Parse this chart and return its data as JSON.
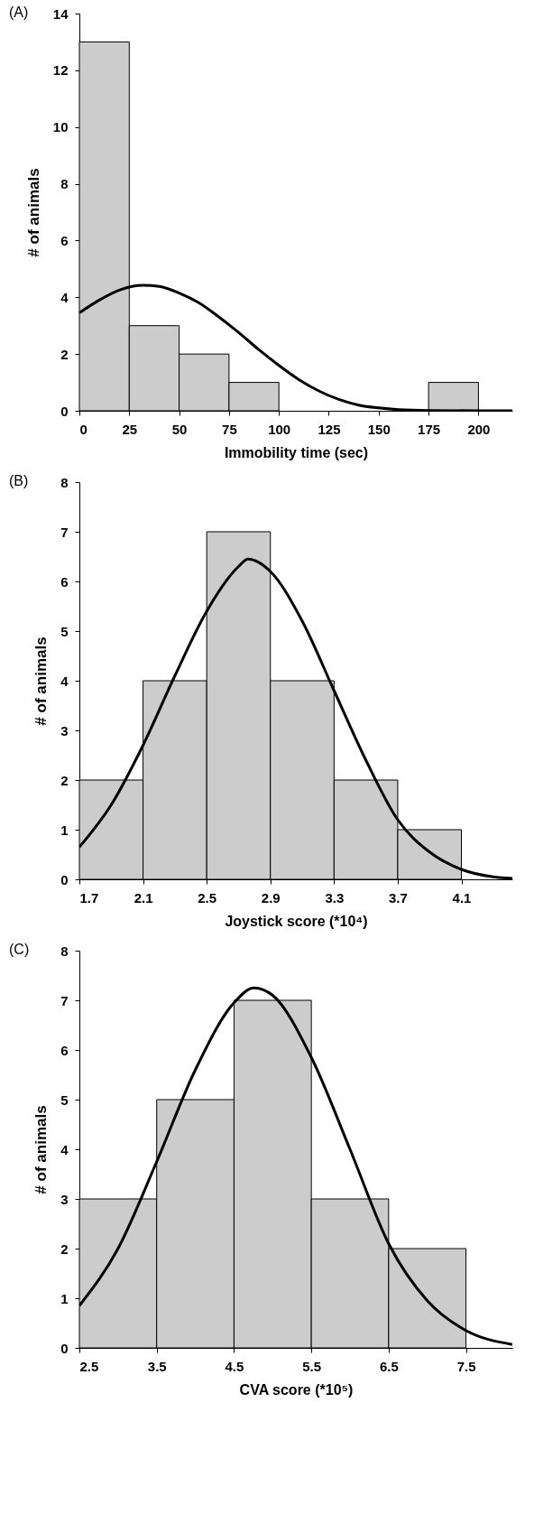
{
  "chart_data": [
    {
      "type": "histogram",
      "title": "(A)",
      "xlabel": "Immobility time (sec)",
      "ylabel": "# of animals",
      "bins": [
        0,
        25,
        50,
        75,
        100,
        125,
        150,
        175,
        200
      ],
      "values": [
        13,
        3,
        2,
        1,
        0,
        0,
        0,
        1
      ],
      "color": "#cccccc",
      "xlim": [
        0,
        217
      ],
      "ylim": [
        0,
        14
      ],
      "xticks": [
        0,
        25,
        50,
        75,
        100,
        125,
        150,
        175,
        200
      ],
      "yticks": [
        0,
        2,
        4,
        6,
        8,
        10,
        12,
        14
      ],
      "series": [
        {
          "type": "line",
          "color": "#000000",
          "x": [
            0,
            10,
            20,
            32,
            40,
            50,
            60,
            70,
            80,
            90,
            100,
            110,
            120,
            130,
            140,
            150,
            160,
            175,
            200,
            217
          ],
          "values": [
            3.45,
            3.9,
            4.25,
            4.42,
            4.38,
            4.15,
            3.8,
            3.3,
            2.75,
            2.15,
            1.6,
            1.1,
            0.7,
            0.4,
            0.2,
            0.1,
            0.04,
            0.01,
            0,
            0
          ]
        }
      ]
    },
    {
      "type": "histogram",
      "title": "(B)",
      "xlabel": "Joystick score (*10⁴)",
      "ylabel": "# of animals",
      "bins": [
        1.7,
        2.1,
        2.5,
        2.9,
        3.3,
        3.7,
        4.1
      ],
      "values": [
        2,
        4,
        7,
        4,
        2,
        1
      ],
      "color": "#cccccc",
      "xlim": [
        1.7,
        4.42
      ],
      "ylim": [
        0,
        8
      ],
      "xticks": [
        1.7,
        2.1,
        2.5,
        2.9,
        3.3,
        3.7,
        4.1
      ],
      "yticks": [
        0,
        1,
        2,
        3,
        4,
        5,
        6,
        7,
        8
      ],
      "series": [
        {
          "type": "line",
          "color": "#000000",
          "x": [
            1.7,
            1.9,
            2.1,
            2.3,
            2.5,
            2.7,
            2.76,
            2.9,
            3.1,
            3.3,
            3.5,
            3.7,
            3.9,
            4.1,
            4.3,
            4.42
          ],
          "values": [
            0.65,
            1.5,
            2.7,
            4.1,
            5.4,
            6.3,
            6.45,
            6.2,
            5.2,
            3.8,
            2.4,
            1.2,
            0.55,
            0.2,
            0.05,
            0.02
          ]
        }
      ]
    },
    {
      "type": "histogram",
      "title": "(C)",
      "xlabel": "CVA score (*10⁵)",
      "ylabel": "# of animals",
      "bins": [
        2.5,
        3.5,
        4.5,
        5.5,
        6.5,
        7.5
      ],
      "values": [
        3,
        5,
        7,
        3,
        2
      ],
      "color": "#cccccc",
      "xlim": [
        2.5,
        8.1
      ],
      "ylim": [
        0,
        8
      ],
      "xticks": [
        2.5,
        3.5,
        4.5,
        5.5,
        6.5,
        7.5
      ],
      "yticks": [
        0,
        1,
        2,
        3,
        4,
        5,
        6,
        7,
        8
      ],
      "series": [
        {
          "type": "line",
          "color": "#000000",
          "x": [
            2.5,
            3.0,
            3.5,
            4.0,
            4.5,
            4.76,
            5.0,
            5.5,
            6.0,
            6.5,
            7.0,
            7.5,
            8.1
          ],
          "values": [
            0.85,
            2.0,
            3.75,
            5.6,
            6.95,
            7.25,
            7.1,
            5.85,
            4.0,
            2.1,
            0.95,
            0.35,
            0.07
          ]
        }
      ]
    }
  ]
}
